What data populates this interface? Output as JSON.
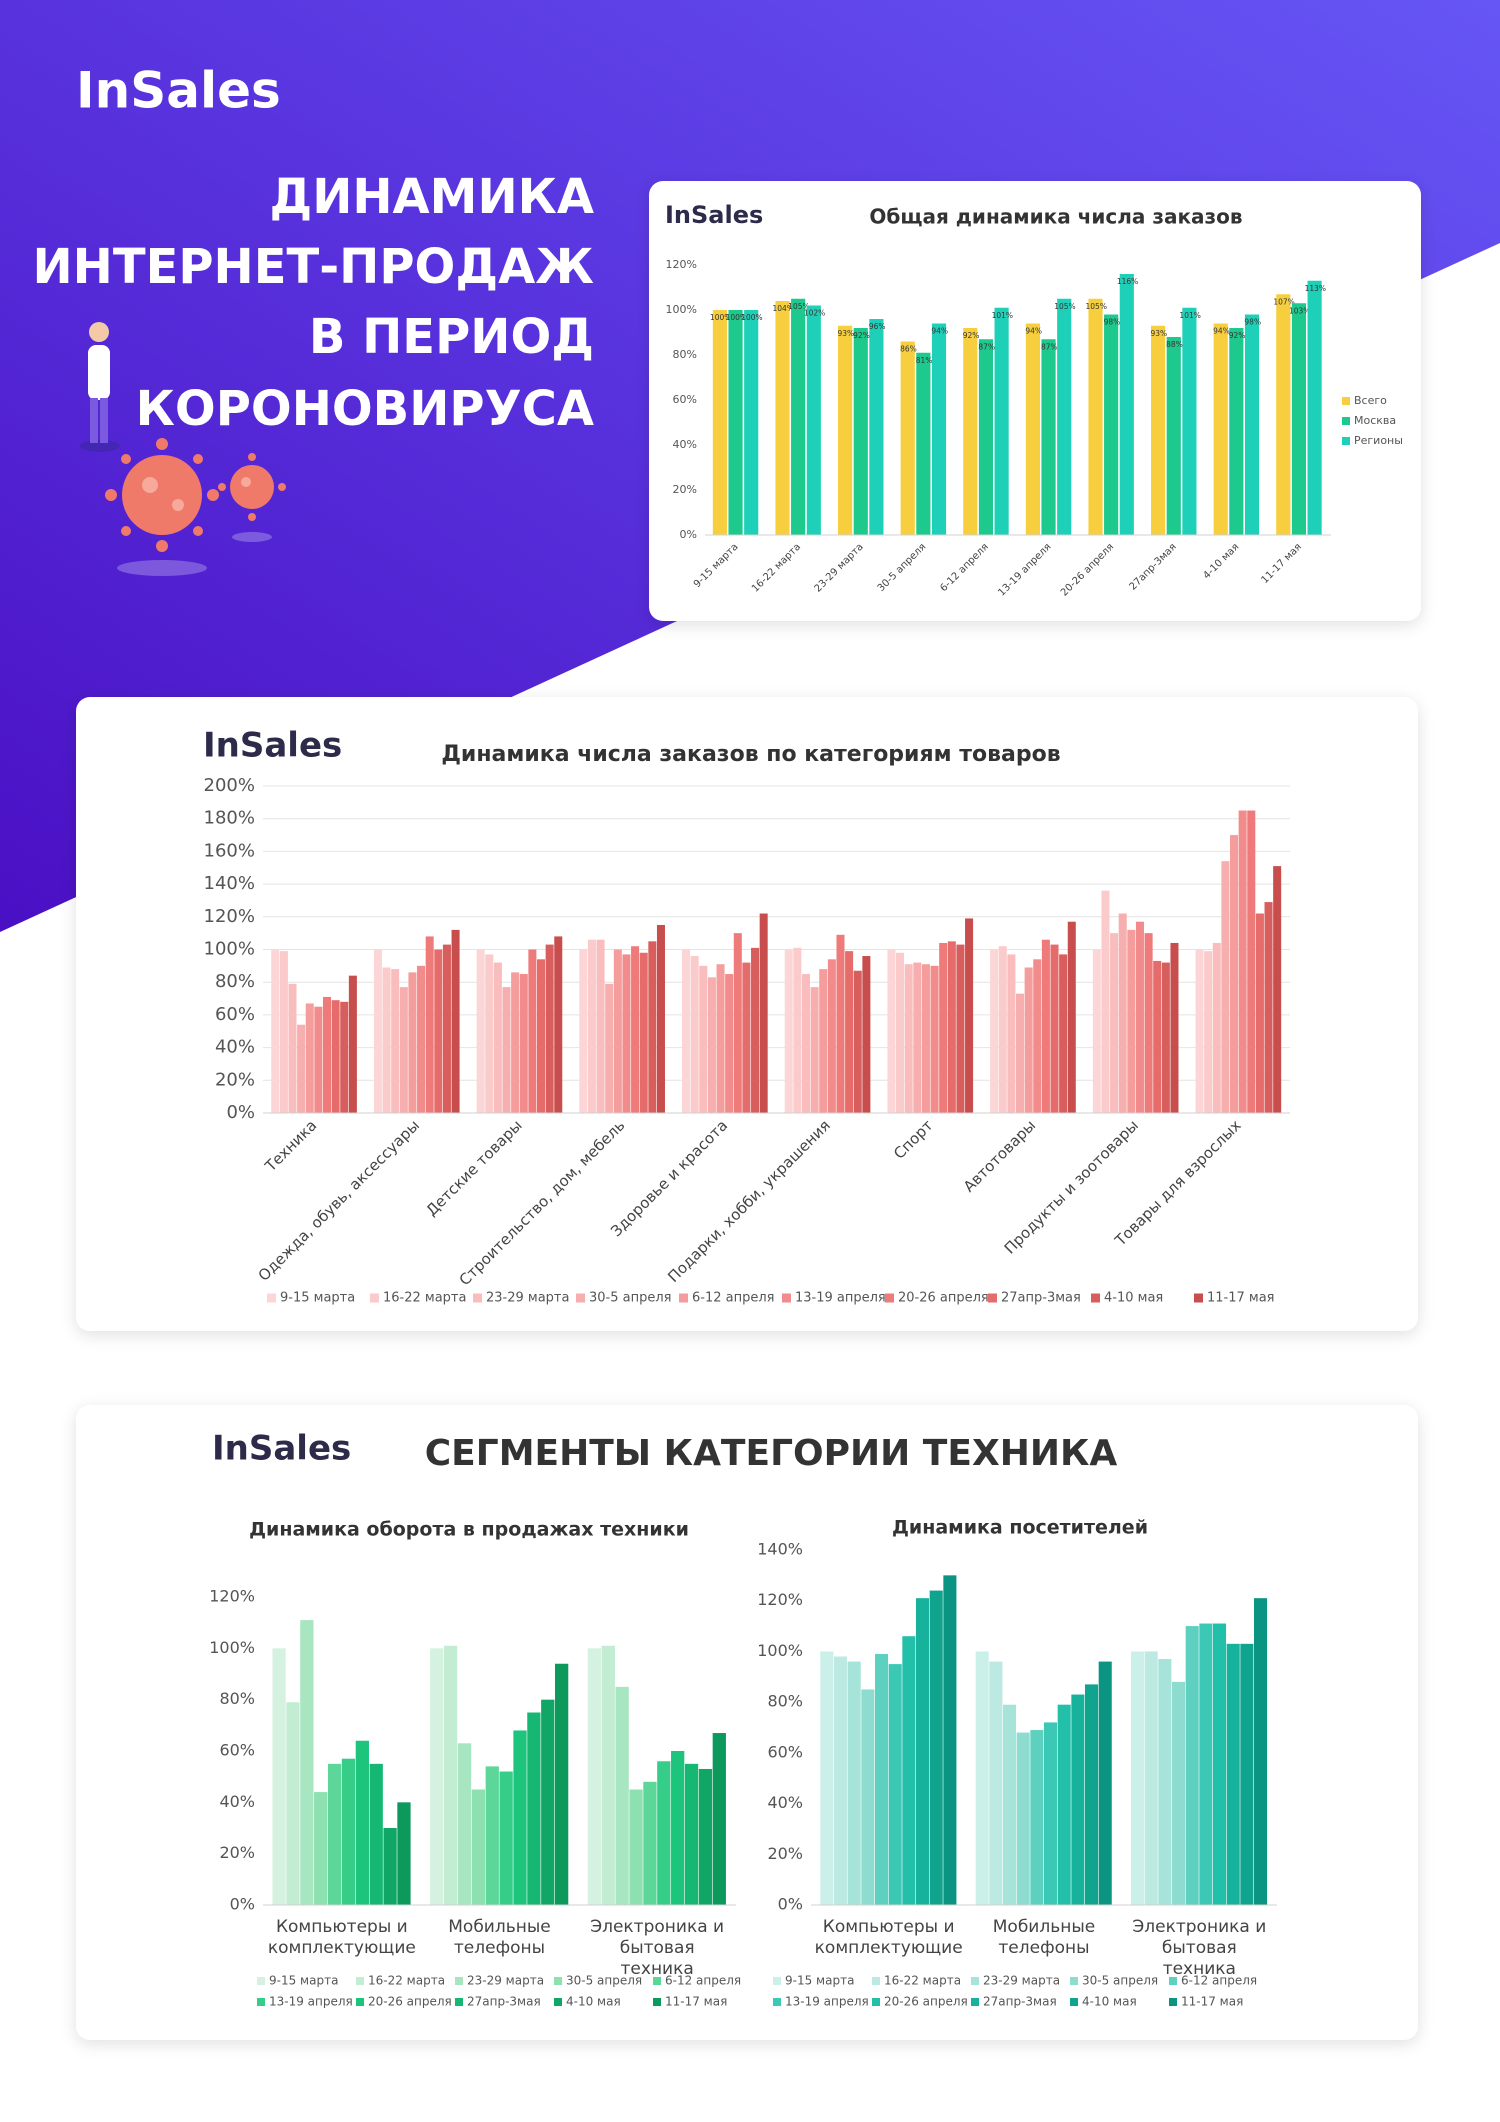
{
  "header": {
    "logo": "InSales",
    "title": [
      "ДИНАМИКА",
      "ИНТЕРНЕТ-ПРОДАЖ",
      "В ПЕРИОД",
      "КОРОНОВИРУСА"
    ]
  },
  "section_title": "СЕГМЕНТЫ КАТЕГОРИИ ТЕХНИКА",
  "chart_data": [
    {
      "type": "bar",
      "title": "Общая динамика числа заказов",
      "categories": [
        "9-15 марта",
        "16-22 марта",
        "23-29 марта",
        "30-5 апреля",
        "6-12 апреля",
        "13-19 апреля",
        "20-26 апреля",
        "27апр-3мая",
        "4-10 мая",
        "11-17 мая"
      ],
      "series": [
        {
          "name": "Всего",
          "color": "#f7cf3e",
          "values": [
            100,
            104,
            93,
            86,
            92,
            94,
            105,
            93,
            94,
            107
          ],
          "value_labels": [
            "100%",
            "104%",
            "93%",
            "86%",
            "92%",
            "94%",
            "105%",
            "93%",
            "94%",
            "107%"
          ]
        },
        {
          "name": "Москва",
          "color": "#1dc98c",
          "values": [
            100,
            105,
            92,
            81,
            87,
            87,
            98,
            88,
            92,
            103
          ],
          "value_labels": [
            "100%",
            "105%",
            "92%",
            "81%",
            "87%",
            "87%",
            "98%",
            "88%",
            "92%",
            "103%"
          ]
        },
        {
          "name": "Регионы",
          "color": "#1fd0b8",
          "values": [
            100,
            102,
            96,
            94,
            101,
            105,
            116,
            101,
            98,
            113
          ],
          "value_labels": [
            "100%",
            "102%",
            "96%",
            "94%",
            "101%",
            "105%",
            "116%",
            "101%",
            "98%",
            "113%"
          ]
        }
      ],
      "ylim": [
        0,
        120
      ],
      "yticks": [
        {
          "value": 0,
          "label": "0%"
        },
        {
          "value": 20,
          "label": "20%"
        },
        {
          "value": 40,
          "label": "40%"
        },
        {
          "value": 60,
          "label": "60%"
        },
        {
          "value": 80,
          "label": "80%"
        },
        {
          "value": 100,
          "label": "100%"
        },
        {
          "value": 120,
          "label": "120%"
        }
      ],
      "grid": false,
      "legend": "right"
    },
    {
      "type": "bar",
      "title": "Динамика числа заказов по категориям товаров",
      "categories": [
        "Техника",
        "Одежда, обувь, аксессуары",
        "Детские товары",
        "Строительство, дом, мебель",
        "Здоровье и красота",
        "Подарки, хобби, украшения",
        "Спорт",
        "Автотовары",
        "Продукты и зоотовары",
        "Товары для взрослых"
      ],
      "series": [
        {
          "name": "9-15 марта",
          "color": "#fcd6d6",
          "values": [
            100,
            100,
            100,
            100,
            100,
            100,
            100,
            100,
            100,
            100
          ]
        },
        {
          "name": "16-22 марта",
          "color": "#fbcaca",
          "values": [
            99,
            89,
            97,
            106,
            96,
            101,
            98,
            102,
            136,
            99
          ]
        },
        {
          "name": "23-29 марта",
          "color": "#f9bdbd",
          "values": [
            79,
            88,
            92,
            106,
            90,
            85,
            91,
            97,
            110,
            104
          ]
        },
        {
          "name": "30-5 апреля",
          "color": "#f7aeae",
          "values": [
            54,
            77,
            77,
            79,
            83,
            77,
            92,
            73,
            122,
            154
          ]
        },
        {
          "name": "6-12 апреля",
          "color": "#f59c9c",
          "values": [
            67,
            86,
            86,
            100,
            91,
            88,
            91,
            89,
            112,
            170
          ]
        },
        {
          "name": "13-19 апреля",
          "color": "#f28b8b",
          "values": [
            65,
            90,
            85,
            97,
            85,
            94,
            90,
            94,
            117,
            185
          ]
        },
        {
          "name": "20-26 апреля",
          "color": "#ee7a7a",
          "values": [
            71,
            108,
            100,
            102,
            110,
            109,
            104,
            106,
            110,
            185
          ]
        },
        {
          "name": "27апр-3мая",
          "color": "#e66b6b",
          "values": [
            69,
            100,
            94,
            98,
            92,
            99,
            105,
            103,
            93,
            122
          ]
        },
        {
          "name": "4-10 мая",
          "color": "#d85d5d",
          "values": [
            68,
            103,
            103,
            105,
            101,
            87,
            103,
            97,
            92,
            129
          ]
        },
        {
          "name": "11-17 мая",
          "color": "#c84e4e",
          "values": [
            84,
            112,
            108,
            115,
            122,
            96,
            119,
            117,
            104,
            151
          ]
        }
      ],
      "ylim": [
        0,
        200
      ],
      "yticks": [
        {
          "value": 0,
          "label": "0%"
        },
        {
          "value": 20,
          "label": "20%"
        },
        {
          "value": 40,
          "label": "40%"
        },
        {
          "value": 60,
          "label": "60%"
        },
        {
          "value": 80,
          "label": "80%"
        },
        {
          "value": 100,
          "label": "100%"
        },
        {
          "value": 120,
          "label": "120%"
        },
        {
          "value": 140,
          "label": "140%"
        },
        {
          "value": 160,
          "label": "160%"
        },
        {
          "value": 180,
          "label": "180%"
        },
        {
          "value": 200,
          "label": "200%"
        }
      ],
      "grid": true,
      "legend": "bottom"
    },
    {
      "type": "bar",
      "title": "Динамика оборота в продажах техники",
      "categories": [
        "Компьютеры и комплектующие",
        "Мобильные телефоны",
        "Электроника и бытовая техника"
      ],
      "series": [
        {
          "name": "9-15 марта",
          "color": "#d4f2df",
          "values": [
            100,
            100,
            100
          ]
        },
        {
          "name": "16-22 марта",
          "color": "#c2edd2",
          "values": [
            79,
            101,
            101
          ]
        },
        {
          "name": "23-29 марта",
          "color": "#a8e6c1",
          "values": [
            111,
            63,
            85
          ]
        },
        {
          "name": "30-5 апреля",
          "color": "#8de0b0",
          "values": [
            44,
            45,
            45
          ]
        },
        {
          "name": "6-12 апреля",
          "color": "#5dd699",
          "values": [
            55,
            54,
            48
          ]
        },
        {
          "name": "13-19 апреля",
          "color": "#35cd88",
          "values": [
            57,
            52,
            56
          ]
        },
        {
          "name": "20-26 апреля",
          "color": "#1dc47c",
          "values": [
            64,
            68,
            60
          ]
        },
        {
          "name": "27апр-3мая",
          "color": "#15b772",
          "values": [
            55,
            75,
            55
          ]
        },
        {
          "name": "4-10 мая",
          "color": "#10a766",
          "values": [
            30,
            80,
            53
          ]
        },
        {
          "name": "11-17 мая",
          "color": "#0d995c",
          "values": [
            40,
            94,
            67
          ]
        }
      ],
      "ylim": [
        0,
        120
      ],
      "yticks": [
        {
          "value": 0,
          "label": "0%"
        },
        {
          "value": 20,
          "label": "20%"
        },
        {
          "value": 40,
          "label": "40%"
        },
        {
          "value": 60,
          "label": "60%"
        },
        {
          "value": 80,
          "label": "80%"
        },
        {
          "value": 100,
          "label": "100%"
        },
        {
          "value": 120,
          "label": "120%"
        }
      ],
      "grid": false,
      "legend": "bottom"
    },
    {
      "type": "bar",
      "title": "Динамика посетителей",
      "categories": [
        "Компьютеры и комплектующие",
        "Мобильные телефоны",
        "Электроника и бытовая техника"
      ],
      "series": [
        {
          "name": "9-15 марта",
          "color": "#cbefe9",
          "values": [
            100,
            100,
            100
          ]
        },
        {
          "name": "16-22 марта",
          "color": "#bce9e2",
          "values": [
            98,
            96,
            100
          ]
        },
        {
          "name": "23-29 марта",
          "color": "#a6e3d9",
          "values": [
            96,
            79,
            97
          ]
        },
        {
          "name": "30-5 апреля",
          "color": "#8edccf",
          "values": [
            85,
            68,
            88
          ]
        },
        {
          "name": "6-12 апреля",
          "color": "#5ed0c0",
          "values": [
            99,
            69,
            110
          ]
        },
        {
          "name": "13-19 апреля",
          "color": "#3bc8b5",
          "values": [
            95,
            72,
            111
          ]
        },
        {
          "name": "20-26 апреля",
          "color": "#22bfa9",
          "values": [
            106,
            79,
            111
          ]
        },
        {
          "name": "27апр-3мая",
          "color": "#17b29c",
          "values": [
            121,
            83,
            103
          ]
        },
        {
          "name": "4-10 мая",
          "color": "#10a38e",
          "values": [
            124,
            87,
            103
          ]
        },
        {
          "name": "11-17 мая",
          "color": "#0c9482",
          "values": [
            130,
            96,
            121
          ]
        }
      ],
      "ylim": [
        0,
        140
      ],
      "yticks": [
        {
          "value": 0,
          "label": "0%"
        },
        {
          "value": 20,
          "label": "20%"
        },
        {
          "value": 40,
          "label": "40%"
        },
        {
          "value": 60,
          "label": "60%"
        },
        {
          "value": 80,
          "label": "80%"
        },
        {
          "value": 100,
          "label": "100%"
        },
        {
          "value": 120,
          "label": "120%"
        },
        {
          "value": 140,
          "label": "140%"
        }
      ],
      "grid": false,
      "legend": "bottom"
    }
  ]
}
